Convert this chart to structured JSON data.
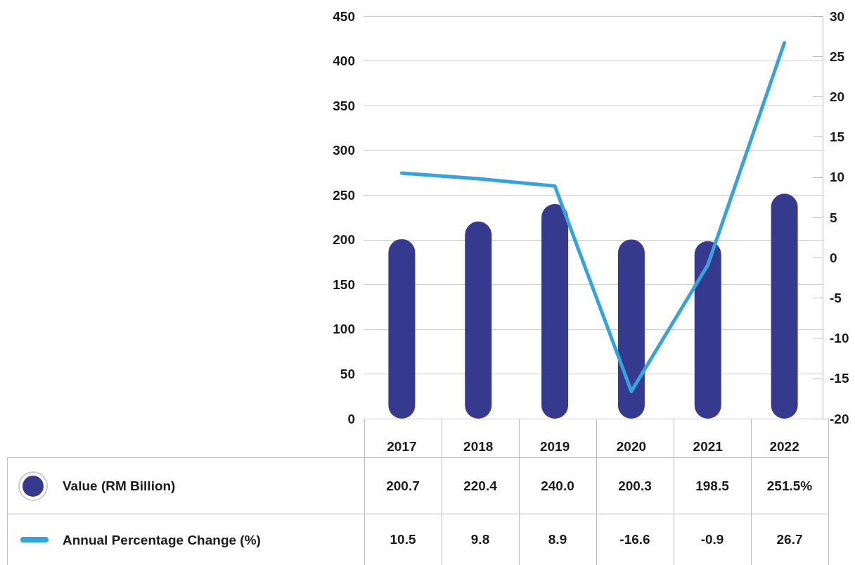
{
  "chart_data": {
    "type": "bar",
    "categories": [
      "2017",
      "2018",
      "2019",
      "2020",
      "2021",
      "2022"
    ],
    "series": [
      {
        "name": "Value (RM Billion)",
        "color": "#363a8e",
        "values": [
          200.7,
          220.4,
          240.0,
          200.3,
          198.5,
          251.5
        ],
        "value_labels": [
          "200.7",
          "220.4",
          "240.0",
          "200.3",
          "198.5",
          "251.5%"
        ]
      },
      {
        "name": "Annual Percentage Change (%)",
        "type": "line",
        "axis": "y2",
        "color": "#35a4dc",
        "values": [
          10.5,
          9.8,
          8.9,
          -16.6,
          -0.9,
          26.7
        ],
        "value_labels": [
          "10.5",
          "9.8",
          "8.9",
          "-16.6",
          "-0.9",
          "26.7"
        ]
      }
    ],
    "ylim": [
      0,
      450
    ],
    "yticks": [
      0,
      50,
      100,
      150,
      200,
      250,
      300,
      350,
      400,
      450
    ],
    "y2lim": [
      -20,
      30
    ],
    "y2ticks": [
      -20,
      -15,
      -10,
      -5,
      0,
      5,
      10,
      15,
      20,
      25,
      30
    ],
    "grid": "y",
    "legend": "bottom",
    "marker": "none",
    "line_style": "solid"
  }
}
